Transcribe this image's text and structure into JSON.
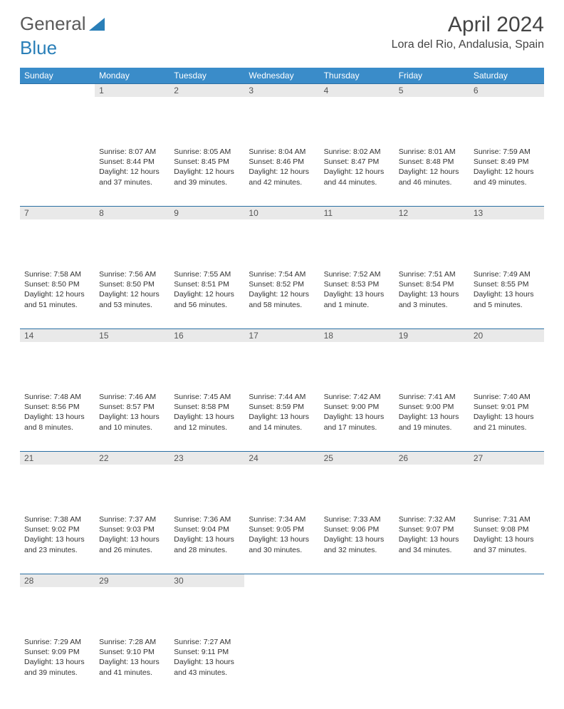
{
  "brand": {
    "part1": "General",
    "part2": "Blue"
  },
  "header": {
    "month_year": "April 2024",
    "location": "Lora del Rio, Andalusia, Spain"
  },
  "colors": {
    "header_bg": "#3a8cc9",
    "header_text": "#ffffff",
    "daynum_bg": "#e9e9e9",
    "border": "#2a6fa3",
    "logo_gray": "#5a5a5a",
    "logo_blue": "#2a7fb8"
  },
  "weekdays": [
    "Sunday",
    "Monday",
    "Tuesday",
    "Wednesday",
    "Thursday",
    "Friday",
    "Saturday"
  ],
  "weeks": [
    [
      null,
      {
        "n": "1",
        "sunrise": "8:07 AM",
        "sunset": "8:44 PM",
        "daylight": "12 hours and 37 minutes."
      },
      {
        "n": "2",
        "sunrise": "8:05 AM",
        "sunset": "8:45 PM",
        "daylight": "12 hours and 39 minutes."
      },
      {
        "n": "3",
        "sunrise": "8:04 AM",
        "sunset": "8:46 PM",
        "daylight": "12 hours and 42 minutes."
      },
      {
        "n": "4",
        "sunrise": "8:02 AM",
        "sunset": "8:47 PM",
        "daylight": "12 hours and 44 minutes."
      },
      {
        "n": "5",
        "sunrise": "8:01 AM",
        "sunset": "8:48 PM",
        "daylight": "12 hours and 46 minutes."
      },
      {
        "n": "6",
        "sunrise": "7:59 AM",
        "sunset": "8:49 PM",
        "daylight": "12 hours and 49 minutes."
      }
    ],
    [
      {
        "n": "7",
        "sunrise": "7:58 AM",
        "sunset": "8:50 PM",
        "daylight": "12 hours and 51 minutes."
      },
      {
        "n": "8",
        "sunrise": "7:56 AM",
        "sunset": "8:50 PM",
        "daylight": "12 hours and 53 minutes."
      },
      {
        "n": "9",
        "sunrise": "7:55 AM",
        "sunset": "8:51 PM",
        "daylight": "12 hours and 56 minutes."
      },
      {
        "n": "10",
        "sunrise": "7:54 AM",
        "sunset": "8:52 PM",
        "daylight": "12 hours and 58 minutes."
      },
      {
        "n": "11",
        "sunrise": "7:52 AM",
        "sunset": "8:53 PM",
        "daylight": "13 hours and 1 minute."
      },
      {
        "n": "12",
        "sunrise": "7:51 AM",
        "sunset": "8:54 PM",
        "daylight": "13 hours and 3 minutes."
      },
      {
        "n": "13",
        "sunrise": "7:49 AM",
        "sunset": "8:55 PM",
        "daylight": "13 hours and 5 minutes."
      }
    ],
    [
      {
        "n": "14",
        "sunrise": "7:48 AM",
        "sunset": "8:56 PM",
        "daylight": "13 hours and 8 minutes."
      },
      {
        "n": "15",
        "sunrise": "7:46 AM",
        "sunset": "8:57 PM",
        "daylight": "13 hours and 10 minutes."
      },
      {
        "n": "16",
        "sunrise": "7:45 AM",
        "sunset": "8:58 PM",
        "daylight": "13 hours and 12 minutes."
      },
      {
        "n": "17",
        "sunrise": "7:44 AM",
        "sunset": "8:59 PM",
        "daylight": "13 hours and 14 minutes."
      },
      {
        "n": "18",
        "sunrise": "7:42 AM",
        "sunset": "9:00 PM",
        "daylight": "13 hours and 17 minutes."
      },
      {
        "n": "19",
        "sunrise": "7:41 AM",
        "sunset": "9:00 PM",
        "daylight": "13 hours and 19 minutes."
      },
      {
        "n": "20",
        "sunrise": "7:40 AM",
        "sunset": "9:01 PM",
        "daylight": "13 hours and 21 minutes."
      }
    ],
    [
      {
        "n": "21",
        "sunrise": "7:38 AM",
        "sunset": "9:02 PM",
        "daylight": "13 hours and 23 minutes."
      },
      {
        "n": "22",
        "sunrise": "7:37 AM",
        "sunset": "9:03 PM",
        "daylight": "13 hours and 26 minutes."
      },
      {
        "n": "23",
        "sunrise": "7:36 AM",
        "sunset": "9:04 PM",
        "daylight": "13 hours and 28 minutes."
      },
      {
        "n": "24",
        "sunrise": "7:34 AM",
        "sunset": "9:05 PM",
        "daylight": "13 hours and 30 minutes."
      },
      {
        "n": "25",
        "sunrise": "7:33 AM",
        "sunset": "9:06 PM",
        "daylight": "13 hours and 32 minutes."
      },
      {
        "n": "26",
        "sunrise": "7:32 AM",
        "sunset": "9:07 PM",
        "daylight": "13 hours and 34 minutes."
      },
      {
        "n": "27",
        "sunrise": "7:31 AM",
        "sunset": "9:08 PM",
        "daylight": "13 hours and 37 minutes."
      }
    ],
    [
      {
        "n": "28",
        "sunrise": "7:29 AM",
        "sunset": "9:09 PM",
        "daylight": "13 hours and 39 minutes."
      },
      {
        "n": "29",
        "sunrise": "7:28 AM",
        "sunset": "9:10 PM",
        "daylight": "13 hours and 41 minutes."
      },
      {
        "n": "30",
        "sunrise": "7:27 AM",
        "sunset": "9:11 PM",
        "daylight": "13 hours and 43 minutes."
      },
      null,
      null,
      null,
      null
    ]
  ],
  "labels": {
    "sunrise_prefix": "Sunrise: ",
    "sunset_prefix": "Sunset: ",
    "daylight_prefix": "Daylight: "
  }
}
